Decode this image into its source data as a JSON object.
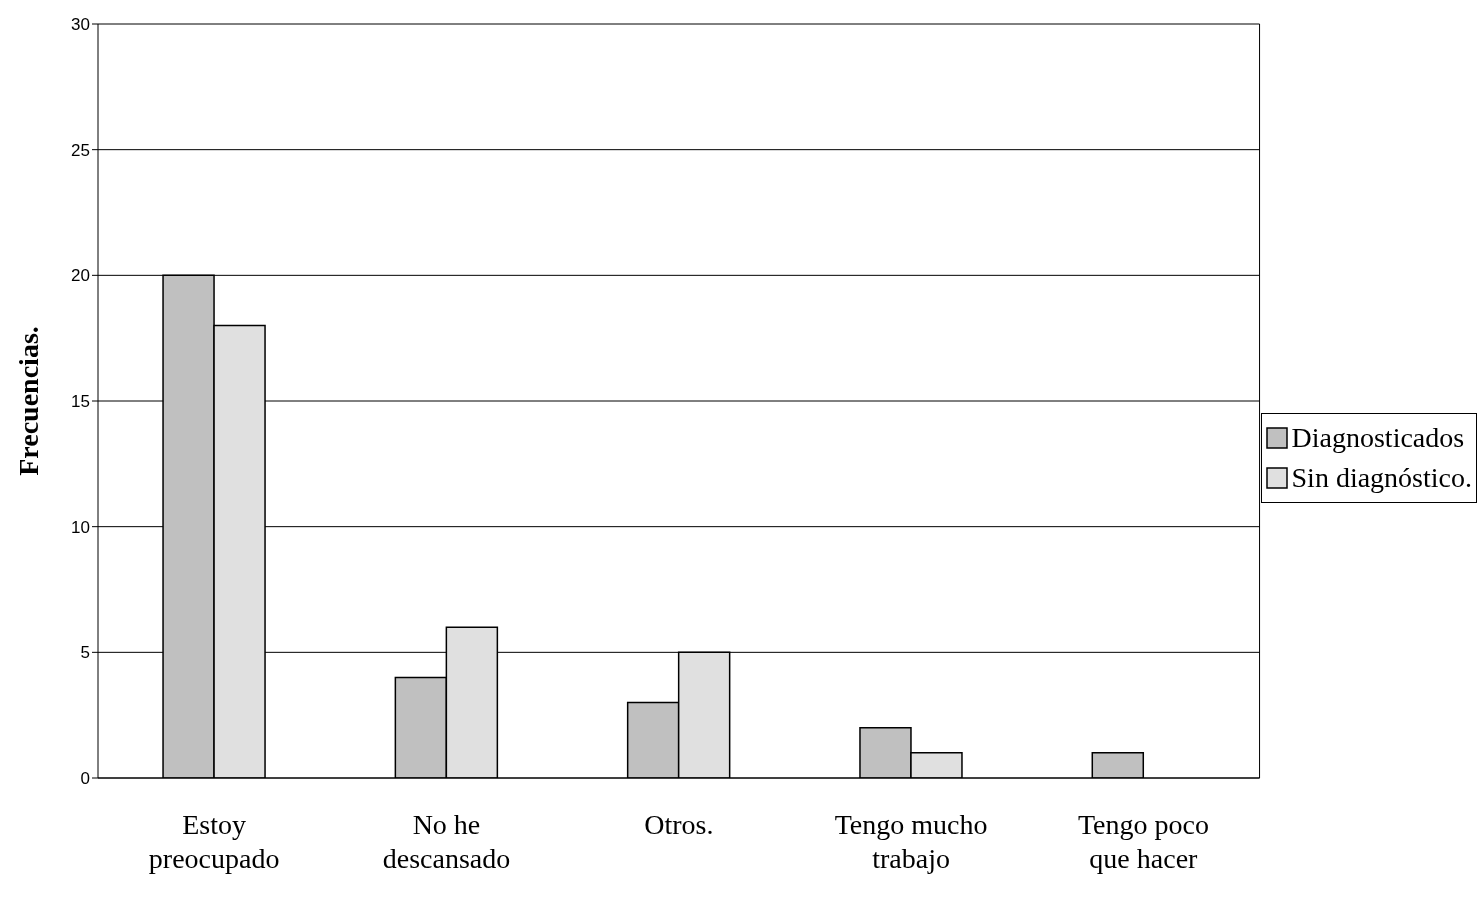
{
  "chart_data": {
    "type": "bar",
    "ylabel": "Frecuencias.",
    "categories": [
      "Estoy preocupado",
      "No he descansado",
      "Otros.",
      "Tengo mucho trabajo",
      "Tengo poco que hacer"
    ],
    "series": [
      {
        "name": "Diagnosticados",
        "color": "#c0c0c0",
        "values": [
          20,
          4,
          3,
          2,
          1
        ]
      },
      {
        "name": "Sin diagnóstico.",
        "color": "#e0e0e0",
        "values": [
          18,
          6,
          5,
          1,
          0
        ]
      }
    ],
    "ylim": [
      0,
      30
    ],
    "yticks": [
      0,
      5,
      10,
      15,
      20,
      25,
      30
    ],
    "grid": "y",
    "legend": "right"
  }
}
